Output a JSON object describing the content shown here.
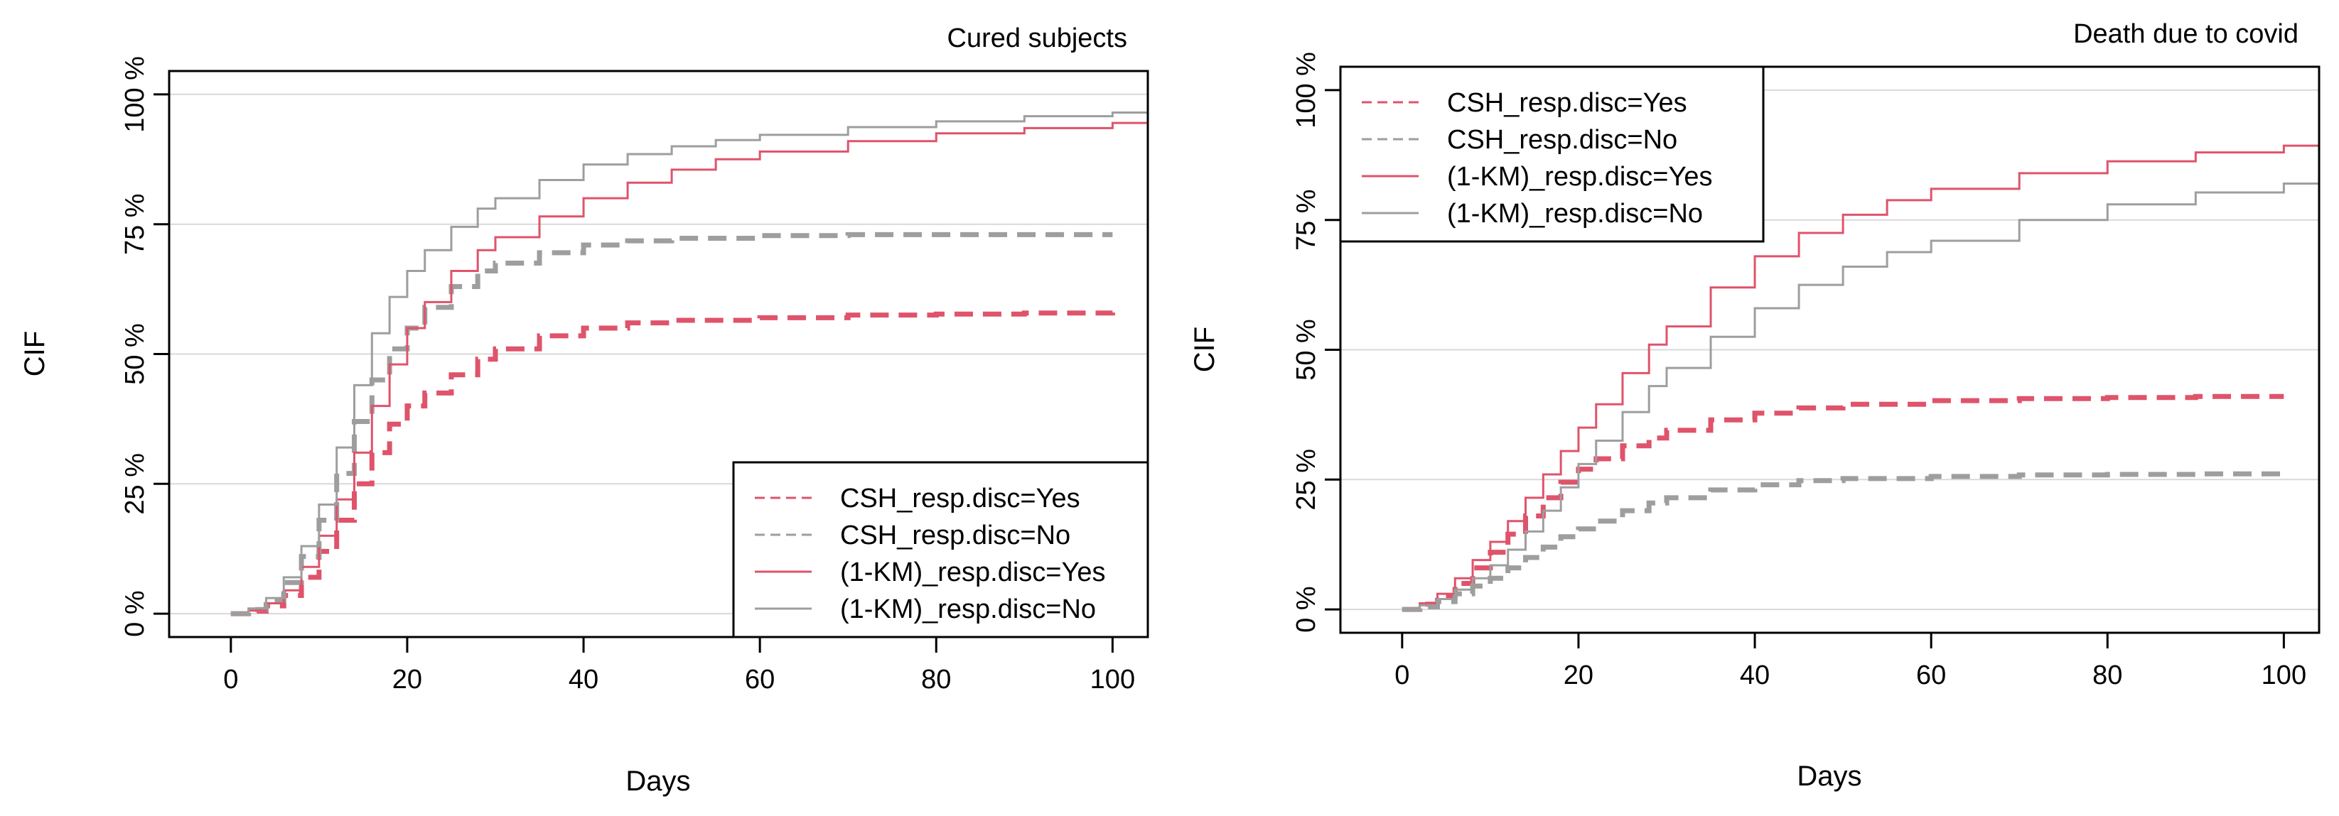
{
  "chart_data": [
    {
      "type": "line",
      "title": "Cured subjects",
      "xlabel": "Days",
      "ylabel": "CIF",
      "xlim": [
        -7,
        104
      ],
      "ylim": [
        -4.5,
        104.5
      ],
      "x_ticks": [
        0,
        20,
        40,
        60,
        80,
        100
      ],
      "x_tick_labels": [
        "0",
        "20",
        "40",
        "60",
        "80",
        "100"
      ],
      "y_ticks": [
        0,
        25,
        50,
        75,
        100
      ],
      "y_tick_labels": [
        "0 %",
        "25 %",
        "50 %",
        "75 %",
        "100 %"
      ],
      "grid": "horizontal",
      "legend_position": "bottom-right",
      "legend": [
        "CSH_resp.disc=Yes",
        "CSH_resp.disc=No",
        "(1-KM)_resp.disc=Yes",
        "(1-KM)_resp.disc=No"
      ],
      "series": [
        {
          "name": "CSH_resp.disc=Yes",
          "color": "#df536b",
          "style": "dashed",
          "x": [
            0,
            2,
            4,
            6,
            8,
            10,
            12,
            14,
            16,
            18,
            20,
            22,
            25,
            28,
            30,
            35,
            40,
            45,
            50,
            60,
            70,
            80,
            90,
            100
          ],
          "y": [
            0,
            0.5,
            1.5,
            3.5,
            7,
            12,
            18,
            25,
            31,
            36.5,
            40,
            42.5,
            46,
            49,
            51,
            53.5,
            55,
            56,
            56.5,
            57,
            57.5,
            57.7,
            57.9,
            58
          ]
        },
        {
          "name": "CSH_resp.disc=No",
          "color": "#9e9e9e",
          "style": "dashed",
          "x": [
            0,
            2,
            4,
            6,
            8,
            10,
            12,
            14,
            16,
            18,
            20,
            22,
            25,
            28,
            30,
            35,
            40,
            45,
            50,
            60,
            70,
            80,
            90,
            100
          ],
          "y": [
            0,
            0.8,
            2.5,
            6,
            11,
            18,
            27,
            37,
            45,
            51,
            55,
            59,
            63,
            66,
            67.5,
            69.5,
            71,
            71.8,
            72.3,
            72.8,
            73,
            73,
            73,
            73
          ]
        },
        {
          "name": "(1-KM)_resp.disc=Yes",
          "color": "#df536b",
          "style": "solid",
          "x": [
            0,
            2,
            4,
            6,
            8,
            10,
            12,
            14,
            16,
            18,
            20,
            22,
            25,
            28,
            30,
            35,
            40,
            45,
            50,
            55,
            60,
            70,
            80,
            90,
            100,
            104
          ],
          "y": [
            0,
            0.6,
            2,
            4.5,
            9,
            15,
            22,
            31,
            40,
            48,
            55,
            60,
            66,
            70,
            72.5,
            76.5,
            80,
            83,
            85.5,
            87.5,
            89,
            91,
            92.5,
            93.5,
            94.5,
            95
          ]
        },
        {
          "name": "(1-KM)_resp.disc=No",
          "color": "#9e9e9e",
          "style": "solid",
          "x": [
            0,
            2,
            4,
            6,
            8,
            10,
            12,
            14,
            16,
            18,
            20,
            22,
            25,
            28,
            30,
            35,
            40,
            45,
            50,
            55,
            60,
            70,
            80,
            90,
            100,
            104
          ],
          "y": [
            0,
            1,
            3,
            7,
            13,
            21,
            32,
            44,
            54,
            61,
            66,
            70,
            74.5,
            78,
            80,
            83.5,
            86.5,
            88.5,
            90,
            91.2,
            92.2,
            93.7,
            94.8,
            95.8,
            96.5,
            97
          ]
        }
      ]
    },
    {
      "type": "line",
      "title": "Death due to covid",
      "xlabel": "Days",
      "ylabel": "CIF",
      "xlim": [
        -7,
        104
      ],
      "ylim": [
        -4.5,
        104.5
      ],
      "x_ticks": [
        0,
        20,
        40,
        60,
        80,
        100
      ],
      "x_tick_labels": [
        "0",
        "20",
        "40",
        "60",
        "80",
        "100"
      ],
      "y_ticks": [
        0,
        25,
        50,
        75,
        100
      ],
      "y_tick_labels": [
        "0 %",
        "25 %",
        "50 %",
        "75 %",
        "100 %"
      ],
      "grid": "horizontal",
      "legend_position": "top-left",
      "legend": [
        "CSH_resp.disc=Yes",
        "CSH_resp.disc=No",
        "(1-KM)_resp.disc=Yes",
        "(1-KM)_resp.disc=No"
      ],
      "series": [
        {
          "name": "CSH_resp.disc=Yes",
          "color": "#df536b",
          "style": "dashed",
          "x": [
            0,
            2,
            4,
            6,
            8,
            10,
            12,
            14,
            16,
            18,
            20,
            22,
            25,
            28,
            30,
            35,
            40,
            45,
            50,
            60,
            70,
            80,
            90,
            100
          ],
          "y": [
            0,
            1,
            2.5,
            5,
            8,
            11,
            14.5,
            18,
            21.5,
            24.5,
            27,
            29,
            31.5,
            33,
            34.5,
            36.5,
            37.8,
            38.8,
            39.5,
            40.2,
            40.6,
            40.8,
            41,
            41
          ]
        },
        {
          "name": "CSH_resp.disc=No",
          "color": "#9e9e9e",
          "style": "dashed",
          "x": [
            0,
            2,
            4,
            6,
            8,
            10,
            12,
            14,
            16,
            18,
            20,
            22,
            25,
            28,
            30,
            35,
            40,
            45,
            50,
            60,
            70,
            80,
            90,
            100
          ],
          "y": [
            0,
            0.5,
            1.5,
            3,
            4.5,
            6,
            8,
            10,
            12,
            14,
            15.5,
            17,
            19,
            20.5,
            21.5,
            23,
            24,
            24.8,
            25.2,
            25.6,
            25.9,
            26,
            26.1,
            26.2
          ]
        },
        {
          "name": "(1-KM)_resp.disc=Yes",
          "color": "#df536b",
          "style": "solid",
          "x": [
            0,
            2,
            4,
            6,
            8,
            10,
            12,
            14,
            16,
            18,
            20,
            22,
            25,
            28,
            30,
            35,
            40,
            45,
            50,
            55,
            60,
            70,
            80,
            90,
            100,
            104
          ],
          "y": [
            0,
            1.2,
            3,
            6,
            9.5,
            13,
            17,
            21.5,
            26,
            30.5,
            35,
            39.5,
            45.5,
            51,
            54.5,
            62,
            68,
            72.5,
            76,
            78.8,
            81,
            84,
            86.3,
            88,
            89.3,
            89.8
          ]
        },
        {
          "name": "(1-KM)_resp.disc=No",
          "color": "#9e9e9e",
          "style": "solid",
          "x": [
            0,
            2,
            4,
            6,
            8,
            10,
            12,
            14,
            16,
            18,
            20,
            22,
            25,
            28,
            30,
            35,
            40,
            45,
            50,
            55,
            60,
            70,
            80,
            90,
            100,
            104
          ],
          "y": [
            0,
            0.8,
            2,
            3.8,
            6,
            8.5,
            11.5,
            15,
            19,
            23.5,
            28,
            32.5,
            38,
            43,
            46.5,
            52.5,
            58,
            62.5,
            66,
            68.8,
            71,
            75,
            78,
            80.3,
            82,
            82.5
          ]
        }
      ]
    }
  ]
}
